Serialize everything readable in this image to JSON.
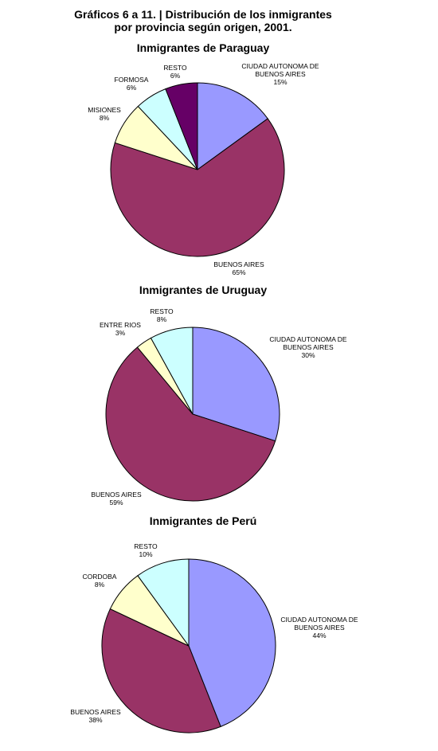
{
  "title_line1": "Gráficos 6 a 11. | Distribución de los inmigrantes",
  "title_line2": "por provincia según origen, 2001.",
  "chart_data": [
    {
      "type": "pie",
      "title": "Inmigrantes de Paraguay",
      "slices": [
        {
          "label": [
            "CIUDAD AUTONOMA DE",
            "BUENOS AIRES"
          ],
          "pct_label": "15%",
          "value": 15,
          "color": "#9999ff"
        },
        {
          "label": [
            "BUENOS AIRES"
          ],
          "pct_label": "65%",
          "value": 65,
          "color": "#993366"
        },
        {
          "label": [
            "MISIONES"
          ],
          "pct_label": "8%",
          "value": 8,
          "color": "#ffffcc"
        },
        {
          "label": [
            "FORMOSA"
          ],
          "pct_label": "6%",
          "value": 6,
          "color": "#ccffff"
        },
        {
          "label": [
            "RESTO"
          ],
          "pct_label": "6%",
          "value": 6,
          "color": "#660066"
        }
      ]
    },
    {
      "type": "pie",
      "title": "Inmigrantes de Uruguay",
      "slices": [
        {
          "label": [
            "CIUDAD AUTONOMA DE",
            "BUENOS AIRES"
          ],
          "pct_label": "30%",
          "value": 30,
          "color": "#9999ff"
        },
        {
          "label": [
            "BUENOS AIRES"
          ],
          "pct_label": "59%",
          "value": 59,
          "color": "#993366"
        },
        {
          "label": [
            "ENTRE RIOS"
          ],
          "pct_label": "3%",
          "value": 3,
          "color": "#ffffcc"
        },
        {
          "label": [
            "RESTO"
          ],
          "pct_label": "8%",
          "value": 8,
          "color": "#ccffff"
        }
      ]
    },
    {
      "type": "pie",
      "title": "Inmigrantes de Perú",
      "slices": [
        {
          "label": [
            "CIUDAD AUTONOMA DE",
            "BUENOS AIRES"
          ],
          "pct_label": "44%",
          "value": 44,
          "color": "#9999ff"
        },
        {
          "label": [
            "BUENOS AIRES"
          ],
          "pct_label": "38%",
          "value": 38,
          "color": "#993366"
        },
        {
          "label": [
            "CORDOBA"
          ],
          "pct_label": "8%",
          "value": 8,
          "color": "#ffffcc"
        },
        {
          "label": [
            "RESTO"
          ],
          "pct_label": "10%",
          "value": 10,
          "color": "#ccffff"
        }
      ]
    }
  ]
}
